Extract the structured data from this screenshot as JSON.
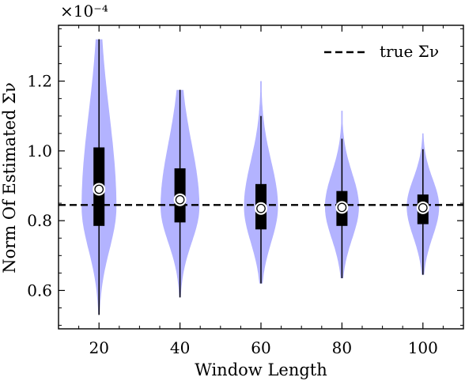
{
  "chart_data": {
    "type": "violin",
    "exponent_label": "×10⁻⁴",
    "xlabel": "Window Length",
    "ylabel": "Norm Of Estimated Σν",
    "categories": [
      "20",
      "40",
      "60",
      "80",
      "100"
    ],
    "x": [
      20,
      40,
      60,
      80,
      100
    ],
    "xlim": [
      10,
      110
    ],
    "ylim": [
      0.49,
      1.36
    ],
    "ytick_values": [
      0.6,
      0.8,
      1.0,
      1.2
    ],
    "ytick_labels": [
      "0.6",
      "0.8",
      "1.0",
      "1.2"
    ],
    "grid": false,
    "legend": {
      "position": "top-right",
      "entries": [
        {
          "label": "true Σν",
          "style": "dashed",
          "color": "#000000"
        }
      ]
    },
    "reference_line": {
      "label": "true Σν",
      "value": 0.845
    },
    "violin_color": "#b3b3ff",
    "series": [
      {
        "x": 20,
        "min": 0.53,
        "q1": 0.785,
        "median": 0.89,
        "q3": 1.01,
        "max": 1.32,
        "mode": 0.84,
        "max_width": 4.3
      },
      {
        "x": 40,
        "min": 0.58,
        "q1": 0.795,
        "median": 0.86,
        "q3": 0.95,
        "max": 1.175,
        "mode": 0.84,
        "max_width": 4.8
      },
      {
        "x": 60,
        "min": 0.62,
        "q1": 0.775,
        "median": 0.835,
        "q3": 0.905,
        "max": 1.1,
        "mode": 0.84,
        "max_width": 4.2,
        "tip": 1.2
      },
      {
        "x": 80,
        "min": 0.635,
        "q1": 0.785,
        "median": 0.838,
        "q3": 0.885,
        "max": 1.035,
        "mode": 0.84,
        "max_width": 4.2,
        "tip": 1.115
      },
      {
        "x": 100,
        "min": 0.645,
        "q1": 0.79,
        "median": 0.837,
        "q3": 0.875,
        "max": 1.005,
        "mode": 0.84,
        "max_width": 4.0,
        "tip": 1.05
      }
    ]
  }
}
